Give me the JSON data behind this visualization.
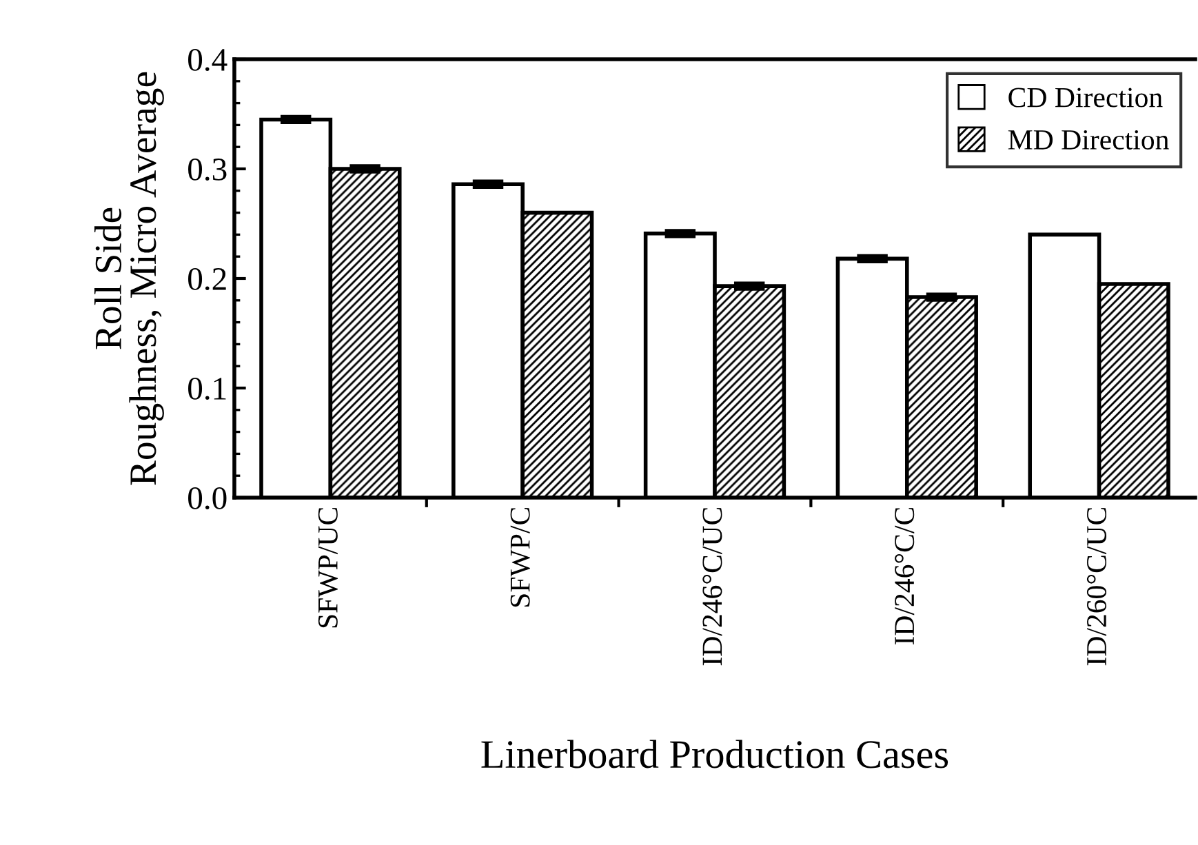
{
  "chart_data": {
    "type": "bar",
    "xlabel": "Linerboard Production Cases",
    "ylabel": "Roll Side\nRoughness, Micro Average",
    "categories": [
      "SFWP/UC",
      "SFWP/C",
      "ID/246°C/UC",
      "ID/246°C/C",
      "ID/260°C/UC"
    ],
    "series": [
      {
        "name": "CD Direction",
        "color": "#ffffff",
        "values": [
          0.345,
          0.286,
          0.241,
          0.218,
          0.24
        ],
        "errors": [
          0.002,
          0.002,
          0.002,
          0.002,
          null
        ]
      },
      {
        "name": "MD Direction",
        "color": "#000000",
        "values": [
          0.3,
          0.26,
          0.193,
          0.183,
          0.195
        ],
        "errors": [
          0.002,
          null,
          0.002,
          0.002,
          null
        ]
      }
    ],
    "ylim": [
      0,
      0.4
    ],
    "yticks": [
      "0.0",
      0.1,
      0.2,
      0.3,
      0.4
    ],
    "legend": "top right",
    "grid": false
  }
}
